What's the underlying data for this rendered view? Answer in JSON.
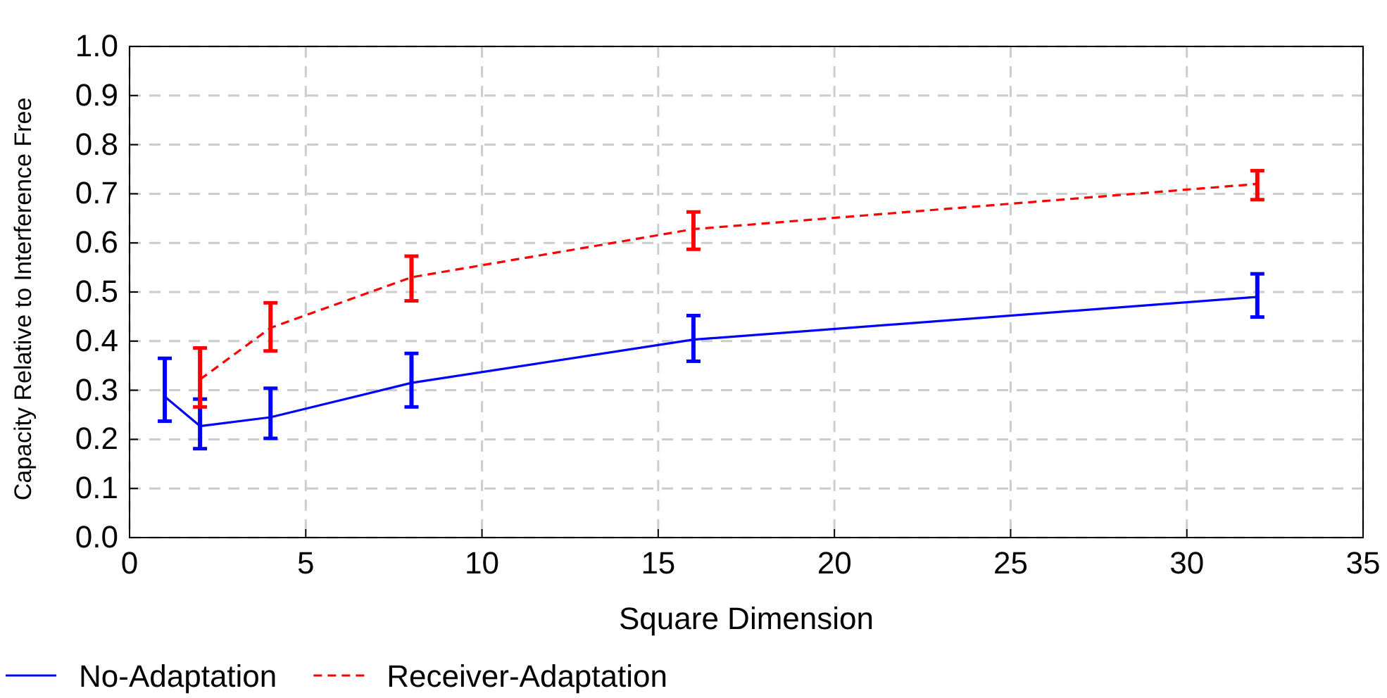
{
  "chart_data": {
    "type": "line",
    "xlabel": "Square Dimension",
    "ylabel": "Capacity Relative to Interference Free",
    "xlim": [
      0,
      35
    ],
    "xticks": [
      0,
      5,
      10,
      15,
      20,
      25,
      30,
      35
    ],
    "ylim": [
      0,
      1
    ],
    "yticks": [
      {
        "value": 0,
        "label": "0.0"
      },
      0.1,
      0.2,
      0.3,
      0.4,
      0.5,
      0.6,
      0.7,
      0.8,
      0.9,
      {
        "value": 1,
        "label": "1.0"
      }
    ],
    "grid": true,
    "legend": "bottom",
    "marker": "none",
    "series": [
      {
        "name": "No-Adaptation",
        "color": "#0000ff",
        "line_style": "solid",
        "x": [
          1,
          2,
          4,
          8,
          16,
          32
        ],
        "values": [
          0.287,
          0.227,
          0.245,
          0.315,
          0.403,
          0.49
        ],
        "errors": [
          [
            0.237,
            0.365
          ],
          [
            0.181,
            0.282
          ],
          [
            0.202,
            0.304
          ],
          [
            0.266,
            0.375
          ],
          [
            0.359,
            0.452
          ],
          [
            0.449,
            0.537
          ]
        ]
      },
      {
        "name": "Receiver-Adaptation",
        "color": "#ff0000",
        "line_style": "dashed",
        "x": [
          2,
          4,
          8,
          16,
          32
        ],
        "values": [
          0.322,
          0.427,
          0.53,
          0.628,
          0.72
        ],
        "errors": [
          [
            0.266,
            0.386
          ],
          [
            0.38,
            0.478
          ],
          [
            0.482,
            0.573
          ],
          [
            0.587,
            0.663
          ],
          [
            0.688,
            0.747
          ]
        ]
      }
    ]
  }
}
